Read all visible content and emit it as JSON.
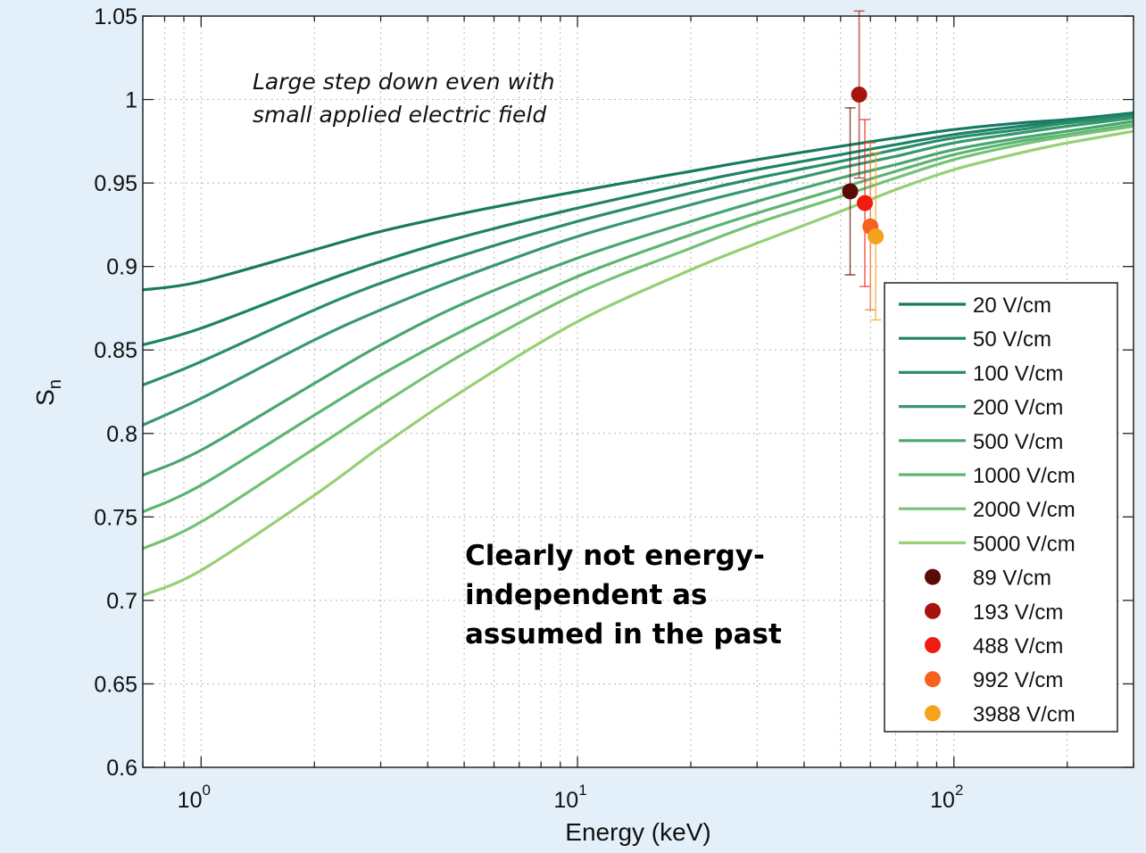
{
  "chart_data": {
    "type": "line",
    "title": "",
    "xlabel": "Energy (keV)",
    "ylabel": {
      "main": "S",
      "sub": "n"
    },
    "xscale": "log",
    "xlim": [
      0.7,
      300
    ],
    "ylim": [
      0.6,
      1.05
    ],
    "x_ticks": [
      {
        "value": 1,
        "base": "10",
        "exp": "0"
      },
      {
        "value": 10,
        "base": "10",
        "exp": "1"
      },
      {
        "value": 100,
        "base": "10",
        "exp": "2"
      }
    ],
    "y_ticks": [
      "0.6",
      "0.65",
      "0.7",
      "0.75",
      "0.8",
      "0.85",
      "0.9",
      "0.95",
      "1",
      "1.05"
    ],
    "grid": true,
    "legend_position": "right",
    "line_x": [
      0.7,
      1,
      2,
      3,
      5,
      10,
      20,
      30,
      50,
      70,
      100,
      150,
      200,
      300
    ],
    "series": [
      {
        "name": "20 V/cm",
        "color": "#177a62",
        "values": [
          0.886,
          0.891,
          0.91,
          0.921,
          0.932,
          0.945,
          0.957,
          0.964,
          0.972,
          0.977,
          0.982,
          0.986,
          0.988,
          0.992
        ]
      },
      {
        "name": "50 V/cm",
        "color": "#1e8366",
        "values": [
          0.853,
          0.863,
          0.889,
          0.903,
          0.918,
          0.935,
          0.95,
          0.958,
          0.967,
          0.973,
          0.979,
          0.984,
          0.987,
          0.991
        ]
      },
      {
        "name": "100 V/cm",
        "color": "#2a8e6a",
        "values": [
          0.829,
          0.843,
          0.874,
          0.89,
          0.907,
          0.927,
          0.944,
          0.953,
          0.963,
          0.97,
          0.977,
          0.982,
          0.986,
          0.99
        ]
      },
      {
        "name": "200 V/cm",
        "color": "#37986e",
        "values": [
          0.805,
          0.821,
          0.856,
          0.874,
          0.894,
          0.918,
          0.937,
          0.947,
          0.959,
          0.966,
          0.974,
          0.98,
          0.984,
          0.989
        ]
      },
      {
        "name": "500 V/cm",
        "color": "#48a670",
        "values": [
          0.775,
          0.79,
          0.83,
          0.853,
          0.878,
          0.905,
          0.927,
          0.939,
          0.953,
          0.961,
          0.97,
          0.977,
          0.981,
          0.987
        ]
      },
      {
        "name": "1000 V/cm",
        "color": "#5cb572",
        "values": [
          0.753,
          0.769,
          0.811,
          0.835,
          0.862,
          0.894,
          0.919,
          0.932,
          0.947,
          0.957,
          0.967,
          0.975,
          0.979,
          0.985
        ]
      },
      {
        "name": "2000 V/cm",
        "color": "#74c274",
        "values": [
          0.731,
          0.747,
          0.791,
          0.817,
          0.848,
          0.884,
          0.911,
          0.926,
          0.942,
          0.953,
          0.964,
          0.973,
          0.978,
          0.984
        ]
      },
      {
        "name": "5000 V/cm",
        "color": "#95d073",
        "values": [
          0.703,
          0.718,
          0.763,
          0.792,
          0.826,
          0.867,
          0.898,
          0.914,
          0.933,
          0.946,
          0.958,
          0.968,
          0.974,
          0.981
        ]
      }
    ],
    "points": [
      {
        "name": "89 V/cm",
        "color": "#5a0b06",
        "x": 53,
        "y": 0.945,
        "err": 0.05
      },
      {
        "name": "193 V/cm",
        "color": "#a5140d",
        "x": 56,
        "y": 1.003,
        "err": 0.05
      },
      {
        "name": "488 V/cm",
        "color": "#f01c12",
        "x": 58,
        "y": 0.938,
        "err": 0.05
      },
      {
        "name": "992 V/cm",
        "color": "#f5621d",
        "x": 60,
        "y": 0.924,
        "err": 0.05
      },
      {
        "name": "3988 V/cm",
        "color": "#f5a21c",
        "x": 62,
        "y": 0.918,
        "err": 0.05
      }
    ],
    "annotations": {
      "note_italic": [
        "Large step down even with",
        "small applied electric field"
      ],
      "note_bold": [
        "Clearly not energy-",
        "independent as",
        "assumed in the past"
      ]
    }
  }
}
